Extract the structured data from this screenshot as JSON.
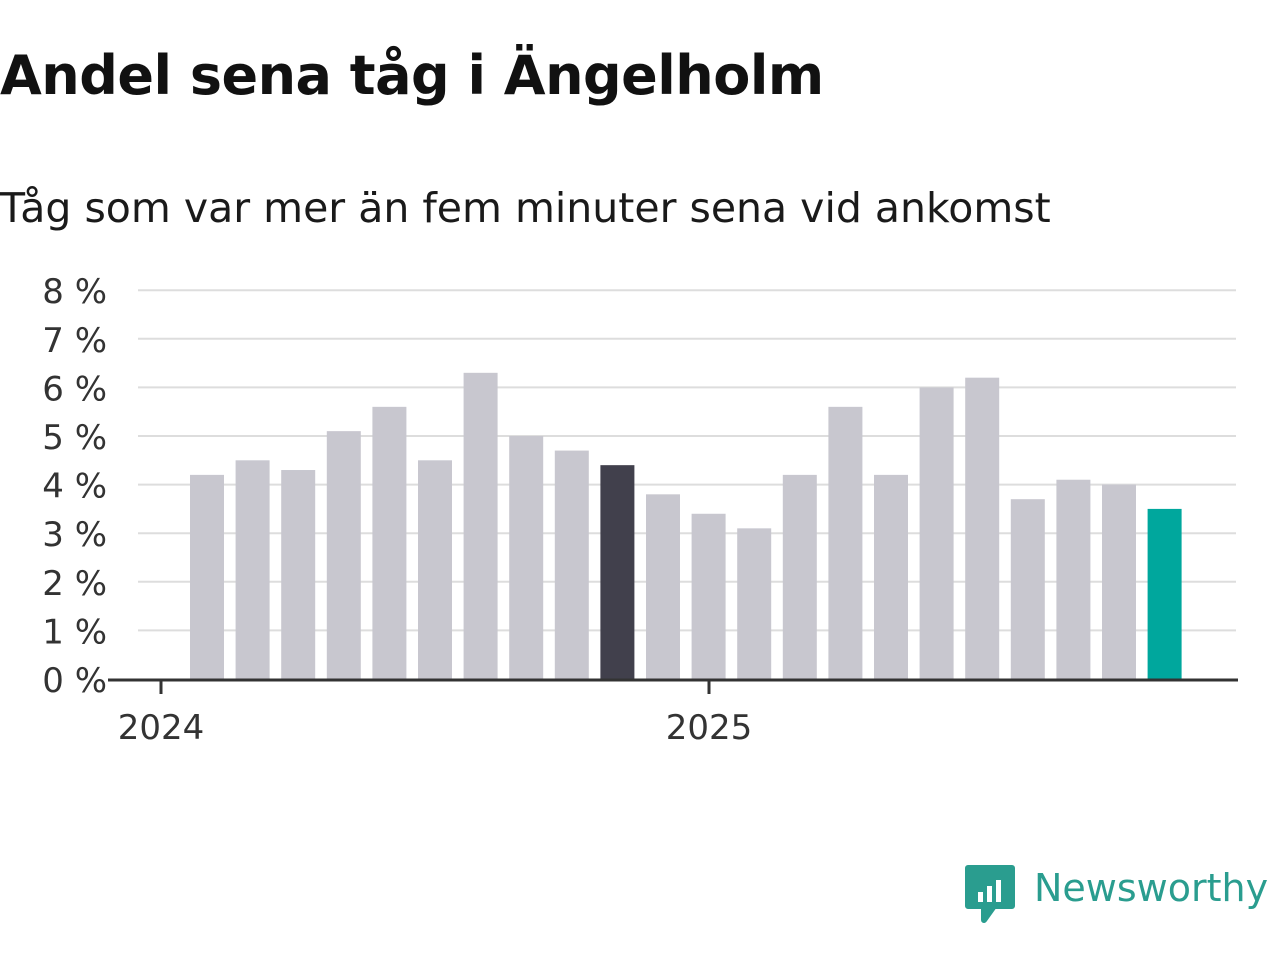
{
  "title": "Andel sena tåg i Ängelholm",
  "subtitle": "Tåg som var mer än fem minuter sena vid ankomst",
  "brand": {
    "name": "Newsworthy",
    "color": "#2a9d8f"
  },
  "chart_data": {
    "type": "bar",
    "x_ticks": [
      "2024",
      "2025"
    ],
    "y_ticks": [
      "0 %",
      "1 %",
      "2 %",
      "3 %",
      "4 %",
      "5 %",
      "6 %",
      "7 %",
      "8 %"
    ],
    "ylim": [
      0,
      8
    ],
    "grid": true,
    "categories": [
      "2024-01",
      "2024-02",
      "2024-03",
      "2024-04",
      "2024-05",
      "2024-06",
      "2024-07",
      "2024-08",
      "2024-09",
      "2024-10",
      "2024-11",
      "2024-12",
      "2025-01",
      "2025-02",
      "2025-03",
      "2025-04",
      "2025-05",
      "2025-06",
      "2025-07",
      "2025-08",
      "2025-09",
      "2025-10"
    ],
    "values": [
      4.2,
      4.5,
      4.3,
      5.1,
      5.6,
      4.5,
      6.3,
      5.0,
      4.7,
      4.4,
      3.8,
      3.4,
      3.1,
      4.2,
      5.6,
      4.2,
      6.0,
      6.2,
      3.7,
      4.1,
      4.0,
      3.5
    ],
    "colors": {
      "default": "#c8c7cf",
      "highlight_dark": "#41404c",
      "highlight_latest": "#00a79d",
      "grid": "#dddddd",
      "axis": "#333333"
    },
    "highlight_dark_index": 9,
    "highlight_latest_index": 21
  }
}
